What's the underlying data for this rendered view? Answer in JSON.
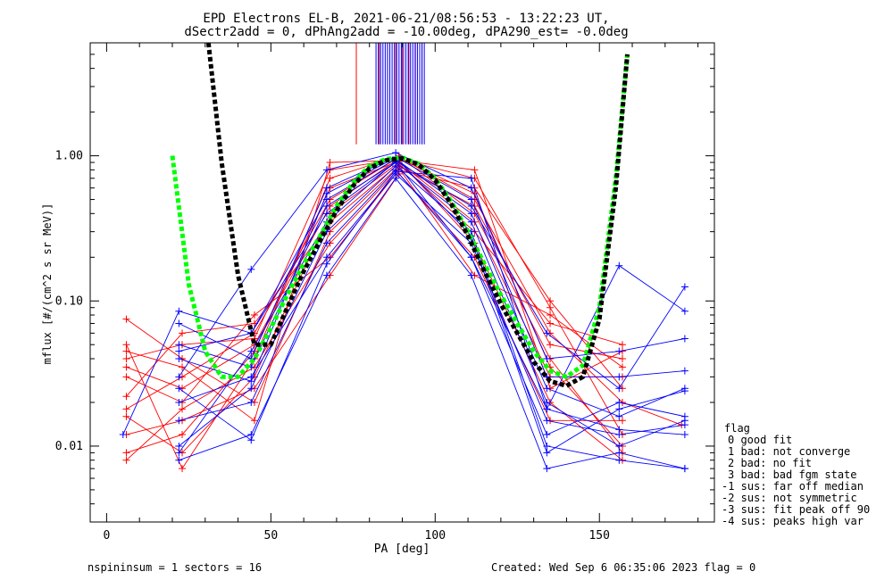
{
  "header": {
    "title_line1": "EPD Electrons EL-B, 2021-06-21/08:56:53 - 13:22:23 UT,",
    "title_line2": "dSectr2add = 0, dPhAng2add = -10.00deg, dPA290_est=  -0.0deg"
  },
  "footer": {
    "left": "nspininsum =  1  sectors = 16",
    "right": "Created: Wed Sep  6 06:35:06 2023   flag = 0"
  },
  "legend": {
    "title": "flag",
    "items": [
      "0 good fit",
      "1 bad: not converge",
      "2 bad: no fit",
      "3 bad: bad fgm state",
      "-1 sus: far off median",
      "-2 sus: not symmetric",
      "-3 sus: fit peak off 90",
      "-4 sus: peaks high var"
    ]
  },
  "chart_data": {
    "type": "line",
    "xlabel": "PA [deg]",
    "ylabel": "mflux [#/(cm^2 s sr MeV)]",
    "xlim": [
      -5,
      185
    ],
    "ylim": [
      0.003,
      6
    ],
    "yscale": "log",
    "x_ticks": [
      0,
      50,
      100,
      150
    ],
    "x_tick_labels": [
      "0",
      "50",
      "100",
      "150"
    ],
    "y_ticks": [
      0.01,
      0.1,
      1.0
    ],
    "y_tick_labels": [
      "0.01",
      "0.10",
      "1.00"
    ],
    "colors": {
      "red": "#ff0000",
      "blue": "#0000ff",
      "green": "#00ff00",
      "black": "#000000"
    },
    "series": [
      {
        "color": "red",
        "x": [
          6,
          23,
          45,
          68,
          89,
          112,
          135,
          157,
          175
        ],
        "y": [
          0.018,
          0.03,
          0.06,
          0.5,
          0.98,
          0.5,
          0.06,
          0.02,
          0.014
        ]
      },
      {
        "color": "red",
        "x": [
          6,
          23,
          45,
          68,
          89,
          112,
          135,
          157
        ],
        "y": [
          0.04,
          0.05,
          0.055,
          0.8,
          0.95,
          0.7,
          0.09,
          0.012
        ]
      },
      {
        "color": "red",
        "x": [
          6,
          23,
          45,
          68,
          89,
          112,
          135,
          157
        ],
        "y": [
          0.016,
          0.009,
          0.03,
          0.4,
          0.9,
          0.35,
          0.03,
          0.03
        ]
      },
      {
        "color": "red",
        "x": [
          6,
          23,
          45,
          68,
          89,
          112,
          135,
          157
        ],
        "y": [
          0.075,
          0.04,
          0.02,
          0.3,
          0.85,
          0.45,
          0.05,
          0.04
        ]
      },
      {
        "color": "red",
        "x": [
          6,
          23,
          45,
          68,
          89,
          112,
          135,
          157
        ],
        "y": [
          0.009,
          0.012,
          0.045,
          0.6,
          0.92,
          0.25,
          0.02,
          0.008
        ]
      },
      {
        "color": "red",
        "x": [
          6,
          23,
          45,
          68,
          89,
          112,
          135,
          157
        ],
        "y": [
          0.03,
          0.02,
          0.08,
          0.2,
          0.8,
          0.6,
          0.1,
          0.025
        ]
      },
      {
        "color": "red",
        "x": [
          6,
          23,
          45,
          68,
          89,
          112,
          135,
          157
        ],
        "y": [
          0.05,
          0.007,
          0.04,
          0.7,
          1.0,
          0.4,
          0.04,
          0.009
        ]
      },
      {
        "color": "red",
        "x": [
          6,
          23,
          45,
          68,
          89,
          112,
          135,
          157
        ],
        "y": [
          0.022,
          0.06,
          0.07,
          0.35,
          0.88,
          0.3,
          0.07,
          0.05
        ]
      },
      {
        "color": "red",
        "x": [
          6,
          23,
          45,
          68,
          89,
          112,
          135,
          157
        ],
        "y": [
          0.012,
          0.015,
          0.025,
          0.15,
          0.75,
          0.2,
          0.015,
          0.015
        ]
      },
      {
        "color": "red",
        "x": [
          6,
          23,
          45,
          68,
          89,
          112,
          135,
          157
        ],
        "y": [
          0.035,
          0.025,
          0.05,
          0.45,
          0.96,
          0.55,
          0.035,
          0.01
        ]
      },
      {
        "color": "red",
        "x": [
          6,
          23,
          45,
          68,
          89,
          112,
          135,
          157
        ],
        "y": [
          0.008,
          0.018,
          0.035,
          0.25,
          0.82,
          0.15,
          0.08,
          0.035
        ]
      },
      {
        "color": "red",
        "x": [
          6,
          23,
          45,
          68,
          89,
          112,
          135,
          157
        ],
        "y": [
          0.045,
          0.035,
          0.015,
          0.9,
          0.93,
          0.8,
          0.025,
          0.045
        ]
      },
      {
        "color": "blue",
        "x": [
          5,
          22,
          44,
          67,
          88,
          111,
          134,
          156,
          176
        ],
        "y": [
          0.012,
          0.085,
          0.06,
          0.4,
          0.9,
          0.2,
          0.018,
          0.175,
          0.085
        ]
      },
      {
        "color": "blue",
        "x": [
          22,
          44,
          67,
          88,
          111,
          134,
          156,
          176
        ],
        "y": [
          0.01,
          0.025,
          0.3,
          0.85,
          0.3,
          0.01,
          0.008,
          0.007
        ]
      },
      {
        "color": "blue",
        "x": [
          22,
          44,
          67,
          88,
          111,
          134,
          156,
          176
        ],
        "y": [
          0.045,
          0.06,
          0.5,
          0.95,
          0.4,
          0.025,
          0.016,
          0.025
        ]
      },
      {
        "color": "blue",
        "x": [
          22,
          44,
          67,
          88,
          111,
          134,
          156,
          176
        ],
        "y": [
          0.02,
          0.03,
          0.2,
          0.75,
          0.25,
          0.015,
          0.012,
          0.014
        ]
      },
      {
        "color": "blue",
        "x": [
          22,
          44,
          67,
          88,
          111,
          134,
          156,
          176
        ],
        "y": [
          0.07,
          0.04,
          0.6,
          0.98,
          0.5,
          0.03,
          0.03,
          0.033
        ]
      },
      {
        "color": "blue",
        "x": [
          22,
          44,
          67,
          88,
          111,
          134,
          156,
          176
        ],
        "y": [
          0.008,
          0.012,
          0.15,
          0.7,
          0.15,
          0.007,
          0.009,
          0.007
        ]
      },
      {
        "color": "blue",
        "x": [
          22,
          44,
          67,
          88,
          111,
          134,
          156,
          176
        ],
        "y": [
          0.03,
          0.165,
          0.8,
          1.05,
          0.6,
          0.04,
          0.045,
          0.055
        ]
      },
      {
        "color": "blue",
        "x": [
          22,
          44,
          67,
          88,
          111,
          134,
          156,
          176
        ],
        "y": [
          0.015,
          0.02,
          0.25,
          0.8,
          0.2,
          0.012,
          0.02,
          0.016
        ]
      },
      {
        "color": "blue",
        "x": [
          22,
          44,
          67,
          88,
          111,
          134,
          156,
          176
        ],
        "y": [
          0.05,
          0.035,
          0.45,
          0.9,
          0.35,
          0.02,
          0.01,
          0.015
        ]
      },
      {
        "color": "blue",
        "x": [
          22,
          44,
          67,
          88,
          111,
          134,
          156,
          176
        ],
        "y": [
          0.009,
          0.045,
          0.35,
          0.92,
          0.45,
          0.06,
          0.025,
          0.125
        ]
      },
      {
        "color": "blue",
        "x": [
          22,
          44,
          67,
          88,
          111,
          134,
          156,
          176
        ],
        "y": [
          0.025,
          0.011,
          0.18,
          0.78,
          0.7,
          0.018,
          0.013,
          0.012
        ]
      },
      {
        "color": "blue",
        "x": [
          22,
          44,
          67,
          88,
          111,
          134,
          156,
          176
        ],
        "y": [
          0.04,
          0.028,
          0.55,
          0.97,
          0.28,
          0.009,
          0.018,
          0.024
        ]
      }
    ],
    "fit_curves": [
      {
        "color": "green",
        "style": "dashed",
        "x": [
          20,
          25,
          30,
          35,
          40,
          45,
          50,
          55,
          60,
          65,
          70,
          75,
          80,
          85,
          90,
          95,
          100,
          105,
          110,
          115,
          120,
          125,
          130,
          135,
          140,
          145,
          150,
          155,
          158.5
        ],
        "y": [
          1.0,
          0.13,
          0.045,
          0.03,
          0.03,
          0.04,
          0.065,
          0.11,
          0.18,
          0.28,
          0.45,
          0.65,
          0.85,
          0.95,
          0.97,
          0.88,
          0.7,
          0.48,
          0.3,
          0.18,
          0.11,
          0.07,
          0.045,
          0.033,
          0.03,
          0.036,
          0.09,
          0.7,
          5.0
        ]
      },
      {
        "color": "black",
        "style": "dashed",
        "x": [
          31,
          35,
          40,
          45,
          50,
          55,
          60,
          65,
          70,
          75,
          80,
          85,
          90,
          95,
          100,
          105,
          110,
          115,
          120,
          125,
          130,
          135,
          140,
          145,
          150,
          155,
          158.5
        ],
        "y": [
          6.0,
          0.9,
          0.15,
          0.05,
          0.05,
          0.09,
          0.16,
          0.26,
          0.42,
          0.62,
          0.82,
          0.93,
          0.96,
          0.87,
          0.68,
          0.46,
          0.28,
          0.16,
          0.095,
          0.06,
          0.038,
          0.028,
          0.026,
          0.03,
          0.075,
          0.6,
          5.0
        ]
      }
    ],
    "peak_lines": [
      {
        "color": "red",
        "x": [
          76,
          83,
          85.5,
          88,
          90,
          92,
          94,
          96
        ],
        "y_from": 1.2,
        "y_to": 6
      },
      {
        "color": "blue",
        "x": [
          82,
          82.7,
          83.4,
          84.1,
          84.8,
          85.5,
          86.2,
          86.9,
          87.6,
          88.3,
          89,
          89.7,
          90.4,
          91.1,
          91.8,
          92.5,
          93.2,
          93.9,
          94.6,
          95.3,
          96,
          96.7
        ],
        "y_from": 1.2,
        "y_to": 6
      }
    ]
  }
}
